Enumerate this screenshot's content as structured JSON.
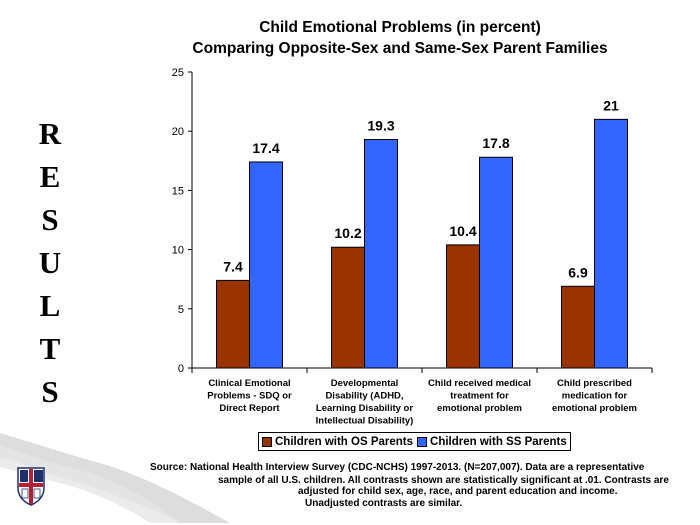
{
  "side_word": [
    "R",
    "E",
    "S",
    "U",
    "L",
    "T",
    "S"
  ],
  "colors": {
    "os": "#993300",
    "ss": "#3366FF",
    "crest_red": "#b22234",
    "crest_navy": "#1f2f6b"
  },
  "source_lines": [
    "Source: National Health Interview Survey (CDC-NCHS) 1997-2013. (N=207,007).   Data are a representative",
    "sample of all U.S. children.  All contrasts shown are statistically significant at .01.   Contrasts are",
    "adjusted for child sex, age, race, and parent education and income.",
    "Unadjusted contrasts are similar."
  ],
  "chart_data": {
    "type": "bar",
    "title": "Child Emotional Problems (in percent)",
    "subtitle": "Comparing Opposite-Sex and Same-Sex Parent Families",
    "categories": [
      [
        "Clinical Emotional",
        "Problems - SDQ or",
        "Direct Report"
      ],
      [
        "Developmental",
        "Disability (ADHD,",
        "Learning Disability or",
        "Intellectual Disability)"
      ],
      [
        "Child received medical",
        "treatment for",
        "emotional problem"
      ],
      [
        "Child prescribed",
        "medication for",
        "emotional problem"
      ]
    ],
    "series": [
      {
        "name": "Children with OS Parents",
        "values": [
          7.4,
          10.2,
          10.4,
          6.9
        ],
        "labels": [
          "7.4",
          "10.2",
          "10.4",
          "6.9"
        ]
      },
      {
        "name": "Children with SS Parents",
        "values": [
          17.4,
          19.3,
          17.8,
          21
        ],
        "labels": [
          "17.4",
          "19.3",
          "17.8",
          "21"
        ]
      }
    ],
    "ylim": [
      0,
      25
    ],
    "yticks": [
      0,
      5,
      10,
      15,
      20,
      25
    ],
    "legend": "bottom",
    "grid": false
  }
}
